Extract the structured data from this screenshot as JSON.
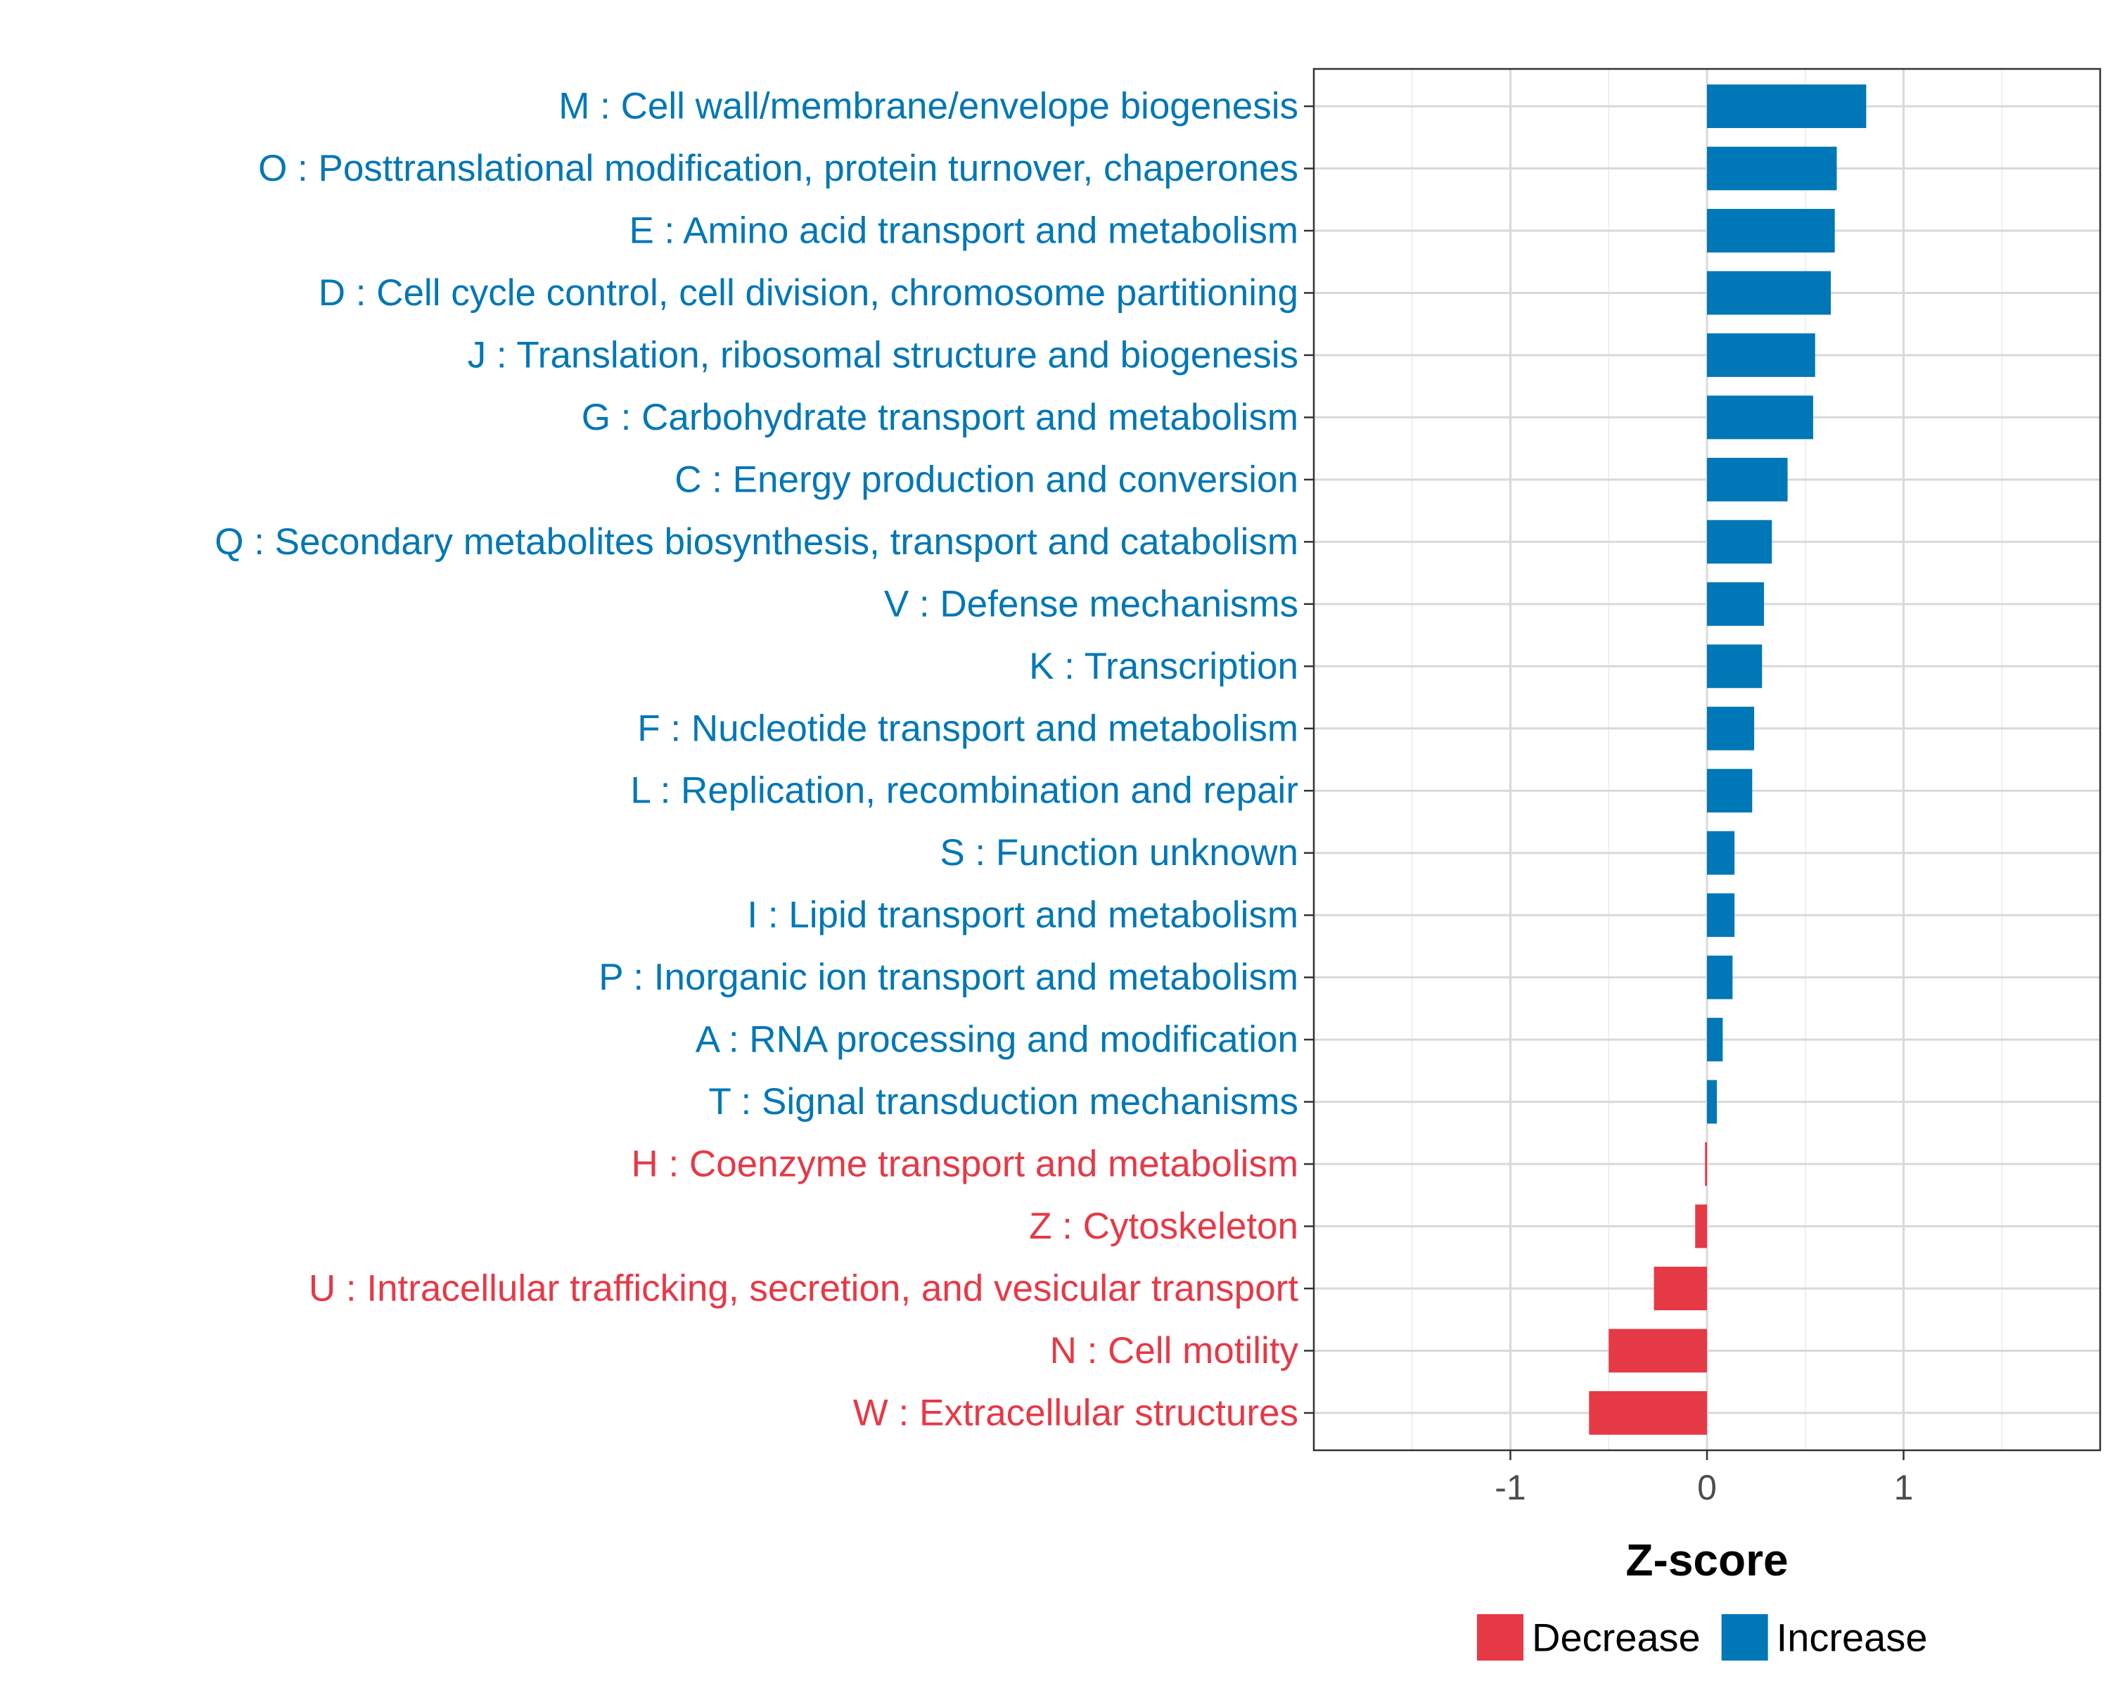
{
  "chart_data": {
    "type": "bar",
    "orientation": "horizontal",
    "title": "",
    "xlabel": "Z-score",
    "ylabel": "",
    "xlim": [
      -2,
      2
    ],
    "xticks": [
      -1,
      0,
      1
    ],
    "xtick_labels": [
      "-1",
      "0",
      "1"
    ],
    "grid": true,
    "categories": [
      "M : Cell wall/membrane/envelope biogenesis",
      "O : Posttranslational modification, protein turnover, chaperones",
      "E : Amino acid transport and metabolism",
      "D : Cell cycle control, cell division, chromosome partitioning",
      "J : Translation, ribosomal structure and biogenesis",
      "G : Carbohydrate transport and metabolism",
      "C : Energy production and conversion",
      "Q : Secondary metabolites biosynthesis, transport and catabolism",
      "V : Defense mechanisms",
      "K : Transcription",
      "F : Nucleotide transport and metabolism",
      "L : Replication, recombination and repair",
      "S : Function unknown",
      "I : Lipid transport and metabolism",
      "P : Inorganic ion transport and metabolism",
      "A : RNA processing and modification",
      "T : Signal transduction mechanisms",
      "H : Coenzyme transport and metabolism",
      "Z : Cytoskeleton",
      "U : Intracellular trafficking, secretion, and vesicular transport",
      "N : Cell motility",
      "W : Extracellular structures"
    ],
    "values": [
      0.81,
      0.66,
      0.65,
      0.63,
      0.55,
      0.54,
      0.41,
      0.33,
      0.29,
      0.28,
      0.24,
      0.23,
      0.14,
      0.14,
      0.13,
      0.08,
      0.05,
      -0.01,
      -0.06,
      -0.27,
      -0.5,
      -0.6
    ],
    "groups": [
      "Increase",
      "Increase",
      "Increase",
      "Increase",
      "Increase",
      "Increase",
      "Increase",
      "Increase",
      "Increase",
      "Increase",
      "Increase",
      "Increase",
      "Increase",
      "Increase",
      "Increase",
      "Increase",
      "Increase",
      "Decrease",
      "Decrease",
      "Decrease",
      "Decrease",
      "Decrease"
    ],
    "legend": {
      "position": "bottom",
      "entries": [
        {
          "label": "Decrease",
          "color": "#E63946"
        },
        {
          "label": "Increase",
          "color": "#0077B6"
        }
      ]
    },
    "colors": {
      "Increase": "#0077B6",
      "Decrease": "#E63946"
    }
  }
}
